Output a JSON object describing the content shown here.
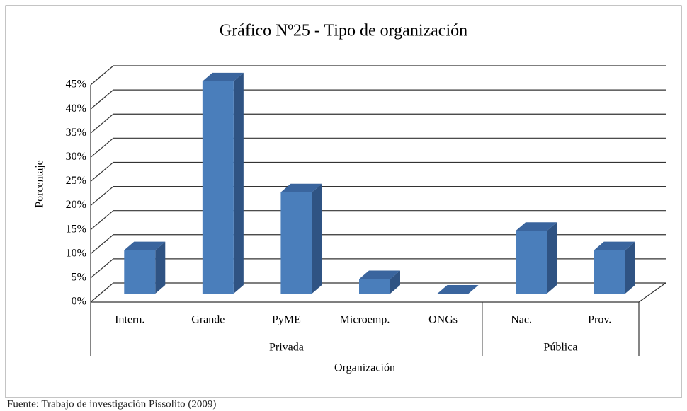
{
  "chart_data": {
    "type": "bar3d",
    "title": "Gráfico Nº25 - Tipo de organización",
    "y_label": "Porcentaje",
    "x_label": "Organización",
    "source": "Fuente: Trabajo de investigación Pissolito (2009)",
    "groups": [
      {
        "name": "Privada",
        "categories": [
          "Intern.",
          "Grande",
          "PyME",
          "Microemp.",
          "ONGs"
        ],
        "values": [
          9,
          44,
          21,
          3,
          0
        ]
      },
      {
        "name": "Pública",
        "categories": [
          "Nac.",
          "Prov."
        ],
        "values": [
          13,
          9
        ]
      }
    ],
    "color": "#4a7ebb",
    "ylim": [
      0,
      45
    ],
    "yticks": [
      {
        "value": 0,
        "label": "0%"
      },
      {
        "value": 5,
        "label": "5%"
      },
      {
        "value": 10,
        "label": "10%"
      },
      {
        "value": 15,
        "label": "15%"
      },
      {
        "value": 20,
        "label": "20%"
      },
      {
        "value": 25,
        "label": "25%"
      },
      {
        "value": 30,
        "label": "30%"
      },
      {
        "value": 35,
        "label": "35%"
      },
      {
        "value": 40,
        "label": "40%"
      },
      {
        "value": 45,
        "label": "45%"
      }
    ],
    "grid": true
  }
}
